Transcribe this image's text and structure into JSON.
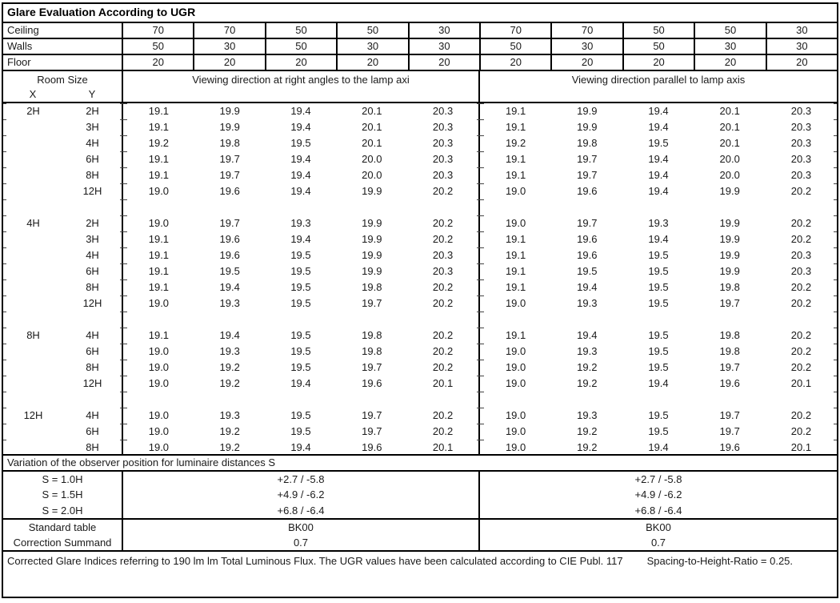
{
  "title": "Glare Evaluation According to UGR",
  "surface_rows": [
    {
      "label": "Ceiling",
      "values": [
        "70",
        "70",
        "50",
        "50",
        "30",
        "70",
        "70",
        "50",
        "50",
        "30"
      ]
    },
    {
      "label": "Walls",
      "values": [
        "50",
        "30",
        "50",
        "30",
        "30",
        "50",
        "30",
        "50",
        "30",
        "30"
      ]
    },
    {
      "label": "Floor",
      "values": [
        "20",
        "20",
        "20",
        "20",
        "20",
        "20",
        "20",
        "20",
        "20",
        "20"
      ]
    }
  ],
  "header": {
    "room_size": "Room Size",
    "x_label": "X",
    "y_label": "Y",
    "left_heading": "Viewing direction at right angles to the lamp axi",
    "right_heading": "Viewing direction parallel to lamp axis"
  },
  "groups": [
    {
      "x": "2H",
      "rows": [
        {
          "y": "2H",
          "left": [
            "19.1",
            "19.9",
            "19.4",
            "20.1",
            "20.3"
          ],
          "right": [
            "19.1",
            "19.9",
            "19.4",
            "20.1",
            "20.3"
          ]
        },
        {
          "y": "3H",
          "left": [
            "19.1",
            "19.9",
            "19.4",
            "20.1",
            "20.3"
          ],
          "right": [
            "19.1",
            "19.9",
            "19.4",
            "20.1",
            "20.3"
          ]
        },
        {
          "y": "4H",
          "left": [
            "19.2",
            "19.8",
            "19.5",
            "20.1",
            "20.3"
          ],
          "right": [
            "19.2",
            "19.8",
            "19.5",
            "20.1",
            "20.3"
          ]
        },
        {
          "y": "6H",
          "left": [
            "19.1",
            "19.7",
            "19.4",
            "20.0",
            "20.3"
          ],
          "right": [
            "19.1",
            "19.7",
            "19.4",
            "20.0",
            "20.3"
          ]
        },
        {
          "y": "8H",
          "left": [
            "19.1",
            "19.7",
            "19.4",
            "20.0",
            "20.3"
          ],
          "right": [
            "19.1",
            "19.7",
            "19.4",
            "20.0",
            "20.3"
          ]
        },
        {
          "y": "12H",
          "left": [
            "19.0",
            "19.6",
            "19.4",
            "19.9",
            "20.2"
          ],
          "right": [
            "19.0",
            "19.6",
            "19.4",
            "19.9",
            "20.2"
          ]
        }
      ]
    },
    {
      "x": "4H",
      "rows": [
        {
          "y": "2H",
          "left": [
            "19.0",
            "19.7",
            "19.3",
            "19.9",
            "20.2"
          ],
          "right": [
            "19.0",
            "19.7",
            "19.3",
            "19.9",
            "20.2"
          ]
        },
        {
          "y": "3H",
          "left": [
            "19.1",
            "19.6",
            "19.4",
            "19.9",
            "20.2"
          ],
          "right": [
            "19.1",
            "19.6",
            "19.4",
            "19.9",
            "20.2"
          ]
        },
        {
          "y": "4H",
          "left": [
            "19.1",
            "19.6",
            "19.5",
            "19.9",
            "20.3"
          ],
          "right": [
            "19.1",
            "19.6",
            "19.5",
            "19.9",
            "20.3"
          ]
        },
        {
          "y": "6H",
          "left": [
            "19.1",
            "19.5",
            "19.5",
            "19.9",
            "20.3"
          ],
          "right": [
            "19.1",
            "19.5",
            "19.5",
            "19.9",
            "20.3"
          ]
        },
        {
          "y": "8H",
          "left": [
            "19.1",
            "19.4",
            "19.5",
            "19.8",
            "20.2"
          ],
          "right": [
            "19.1",
            "19.4",
            "19.5",
            "19.8",
            "20.2"
          ]
        },
        {
          "y": "12H",
          "left": [
            "19.0",
            "19.3",
            "19.5",
            "19.7",
            "20.2"
          ],
          "right": [
            "19.0",
            "19.3",
            "19.5",
            "19.7",
            "20.2"
          ]
        }
      ]
    },
    {
      "x": "8H",
      "rows": [
        {
          "y": "4H",
          "left": [
            "19.1",
            "19.4",
            "19.5",
            "19.8",
            "20.2"
          ],
          "right": [
            "19.1",
            "19.4",
            "19.5",
            "19.8",
            "20.2"
          ]
        },
        {
          "y": "6H",
          "left": [
            "19.0",
            "19.3",
            "19.5",
            "19.8",
            "20.2"
          ],
          "right": [
            "19.0",
            "19.3",
            "19.5",
            "19.8",
            "20.2"
          ]
        },
        {
          "y": "8H",
          "left": [
            "19.0",
            "19.2",
            "19.5",
            "19.7",
            "20.2"
          ],
          "right": [
            "19.0",
            "19.2",
            "19.5",
            "19.7",
            "20.2"
          ]
        },
        {
          "y": "12H",
          "left": [
            "19.0",
            "19.2",
            "19.4",
            "19.6",
            "20.1"
          ],
          "right": [
            "19.0",
            "19.2",
            "19.4",
            "19.6",
            "20.1"
          ]
        }
      ]
    },
    {
      "x": "12H",
      "rows": [
        {
          "y": "4H",
          "left": [
            "19.0",
            "19.3",
            "19.5",
            "19.7",
            "20.2"
          ],
          "right": [
            "19.0",
            "19.3",
            "19.5",
            "19.7",
            "20.2"
          ]
        },
        {
          "y": "6H",
          "left": [
            "19.0",
            "19.2",
            "19.5",
            "19.7",
            "20.2"
          ],
          "right": [
            "19.0",
            "19.2",
            "19.5",
            "19.7",
            "20.2"
          ]
        },
        {
          "y": "8H",
          "left": [
            "19.0",
            "19.2",
            "19.4",
            "19.6",
            "20.1"
          ],
          "right": [
            "19.0",
            "19.2",
            "19.4",
            "19.6",
            "20.1"
          ]
        }
      ]
    }
  ],
  "variation_heading": "Variation of the observer position for luminaire distances S",
  "variation_rows": [
    {
      "label": "S = 1.0H",
      "left": "+2.7 / -5.8",
      "right": "+2.7 / -5.8"
    },
    {
      "label": "S = 1.5H",
      "left": "+4.9 / -6.2",
      "right": "+4.9 / -6.2"
    },
    {
      "label": "S = 2.0H",
      "left": "+6.8 / -6.4",
      "right": "+6.8 / -6.4"
    }
  ],
  "summary_rows": [
    {
      "label": "Standard table",
      "left": "BK00",
      "right": "BK00"
    },
    {
      "label": "Correction Summand",
      "left": "0.7",
      "right": "0.7"
    }
  ],
  "footer": {
    "flux_note": "Corrected Glare Indices referring to 190 lm lm Total Luminous Flux. The UGR values have been calculated according to CIE Publ. 117",
    "shr_note": "Spacing-to-Height-Ratio = 0.25."
  },
  "colors": {
    "border": "#000000",
    "text": "#1a1a1a",
    "background": "#ffffff"
  }
}
